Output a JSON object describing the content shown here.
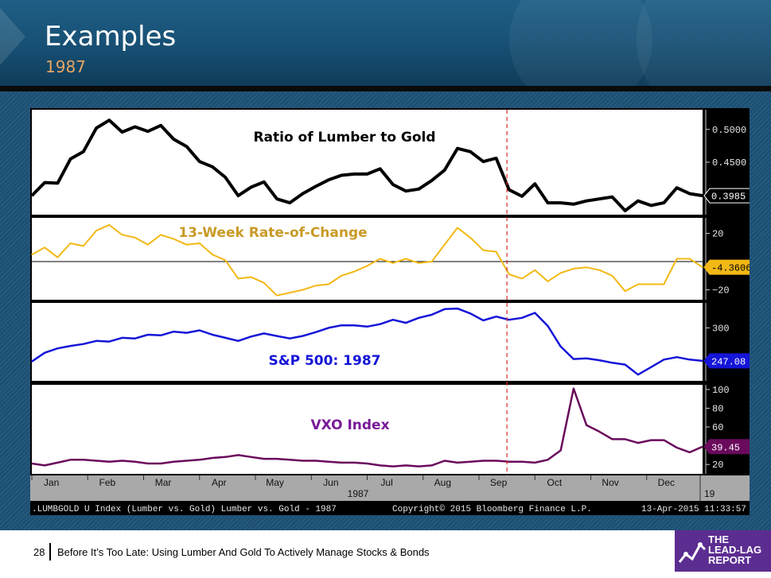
{
  "slide": {
    "title": "Examples",
    "subtitle": "1987",
    "page_number": "28",
    "footer_text": "Before It’s Too Late: Using Lumber And Gold To Actively Manage Stocks & Bonds",
    "logo_lines": [
      "THE",
      "LEAD-LAG",
      "REPORT"
    ]
  },
  "colors": {
    "lumber_gold": "#000000",
    "rate_of_change": "#f2b815",
    "rate_of_change_label": "#c99a26",
    "sp500": "#1515d8",
    "vxo": "#6a0a5c",
    "vxo_label": "#7a1a9a",
    "event_line": "#d42a2a",
    "logo": "#5c2d91"
  },
  "chart_data": [
    {
      "type": "line",
      "panel": "top",
      "annotation": "Ratio of Lumber to Gold",
      "ylim": [
        0.37,
        0.53
      ],
      "y_ticks": [
        "0.5000",
        "0.4500"
      ],
      "y_tick_values": [
        0.5,
        0.45
      ],
      "last_value": "0.3985",
      "values": [
        0.399,
        0.419,
        0.418,
        0.455,
        0.466,
        0.502,
        0.514,
        0.496,
        0.504,
        0.497,
        0.506,
        0.485,
        0.474,
        0.451,
        0.443,
        0.427,
        0.399,
        0.412,
        0.42,
        0.394,
        0.388,
        0.402,
        0.413,
        0.423,
        0.43,
        0.432,
        0.432,
        0.44,
        0.416,
        0.406,
        0.409,
        0.422,
        0.438,
        0.471,
        0.466,
        0.451,
        0.456,
        0.408,
        0.398,
        0.417,
        0.388,
        0.388,
        0.386,
        0.391,
        0.394,
        0.397,
        0.376,
        0.391,
        0.384,
        0.388,
        0.411,
        0.402,
        0.399
      ]
    },
    {
      "type": "line",
      "panel": "second",
      "annotation": "13-Week Rate-of-Change",
      "ylim": [
        -27,
        31
      ],
      "y_ticks": [
        "20",
        "−20"
      ],
      "y_tick_values": [
        20,
        -20
      ],
      "reference_line": 0,
      "last_value": "-4.3606",
      "values": [
        5,
        10,
        3,
        13,
        11,
        22,
        26,
        19,
        17,
        12,
        19,
        16,
        12,
        13,
        5,
        1,
        -12,
        -11,
        -15,
        -24,
        -22,
        -20,
        -17,
        -16,
        -10,
        -7,
        -3,
        2,
        -1,
        2,
        -1,
        0,
        12,
        24,
        17,
        8,
        7,
        -9,
        -12,
        -6,
        -14,
        -8,
        -5,
        -4,
        -6,
        -10,
        -21,
        -16,
        -16,
        -16,
        2,
        2,
        -4
      ]
    },
    {
      "type": "line",
      "panel": "third",
      "annotation": "S&P 500: 1987",
      "ylim": [
        215,
        340
      ],
      "y_ticks": [
        "300"
      ],
      "y_tick_values": [
        300
      ],
      "last_value": "247.08",
      "values": [
        246,
        260,
        267,
        271,
        274,
        279,
        278,
        284,
        283,
        289,
        288,
        294,
        292,
        296,
        289,
        284,
        279,
        286,
        291,
        287,
        283,
        287,
        293,
        300,
        304,
        304,
        302,
        306,
        313,
        308,
        316,
        321,
        330,
        331,
        323,
        312,
        318,
        313,
        316,
        324,
        303,
        270,
        250,
        251,
        248,
        244,
        241,
        225,
        237,
        249,
        253,
        249,
        247
      ]
    },
    {
      "type": "line",
      "panel": "bottom",
      "annotation": "VXO Index",
      "ylim": [
        10,
        105
      ],
      "y_ticks": [
        "100",
        "80",
        "60",
        "40",
        "20"
      ],
      "y_tick_values": [
        100,
        80,
        60,
        40,
        20
      ],
      "last_value": "39.45",
      "values": [
        21,
        19,
        22,
        25,
        25,
        24,
        23,
        24,
        23,
        21,
        21,
        23,
        24,
        25,
        27,
        28,
        30,
        28,
        26,
        26,
        25,
        24,
        24,
        23,
        22,
        22,
        21,
        19,
        18,
        19,
        18,
        19,
        24,
        22,
        23,
        24,
        24,
        23,
        23,
        22,
        25,
        35,
        101,
        62,
        55,
        47,
        47,
        43,
        46,
        46,
        38,
        33,
        39
      ]
    }
  ],
  "x_axis": {
    "months": [
      "Jan",
      "Feb",
      "Mar",
      "Apr",
      "May",
      "Jun",
      "Jul",
      "Aug",
      "Sep",
      "Oct",
      "Nov",
      "Dec"
    ],
    "year": "1987",
    "next_year": "19",
    "event_month": "Sep"
  },
  "bloomberg": {
    "footer_left": ".LUMBGOLD U Index (Lumber vs. Gold) Lumber vs. Gold - 1987",
    "copyright": "Copyright© 2015 Bloomberg Finance L.P.",
    "timestamp": "13-Apr-2015 11:33:57"
  }
}
